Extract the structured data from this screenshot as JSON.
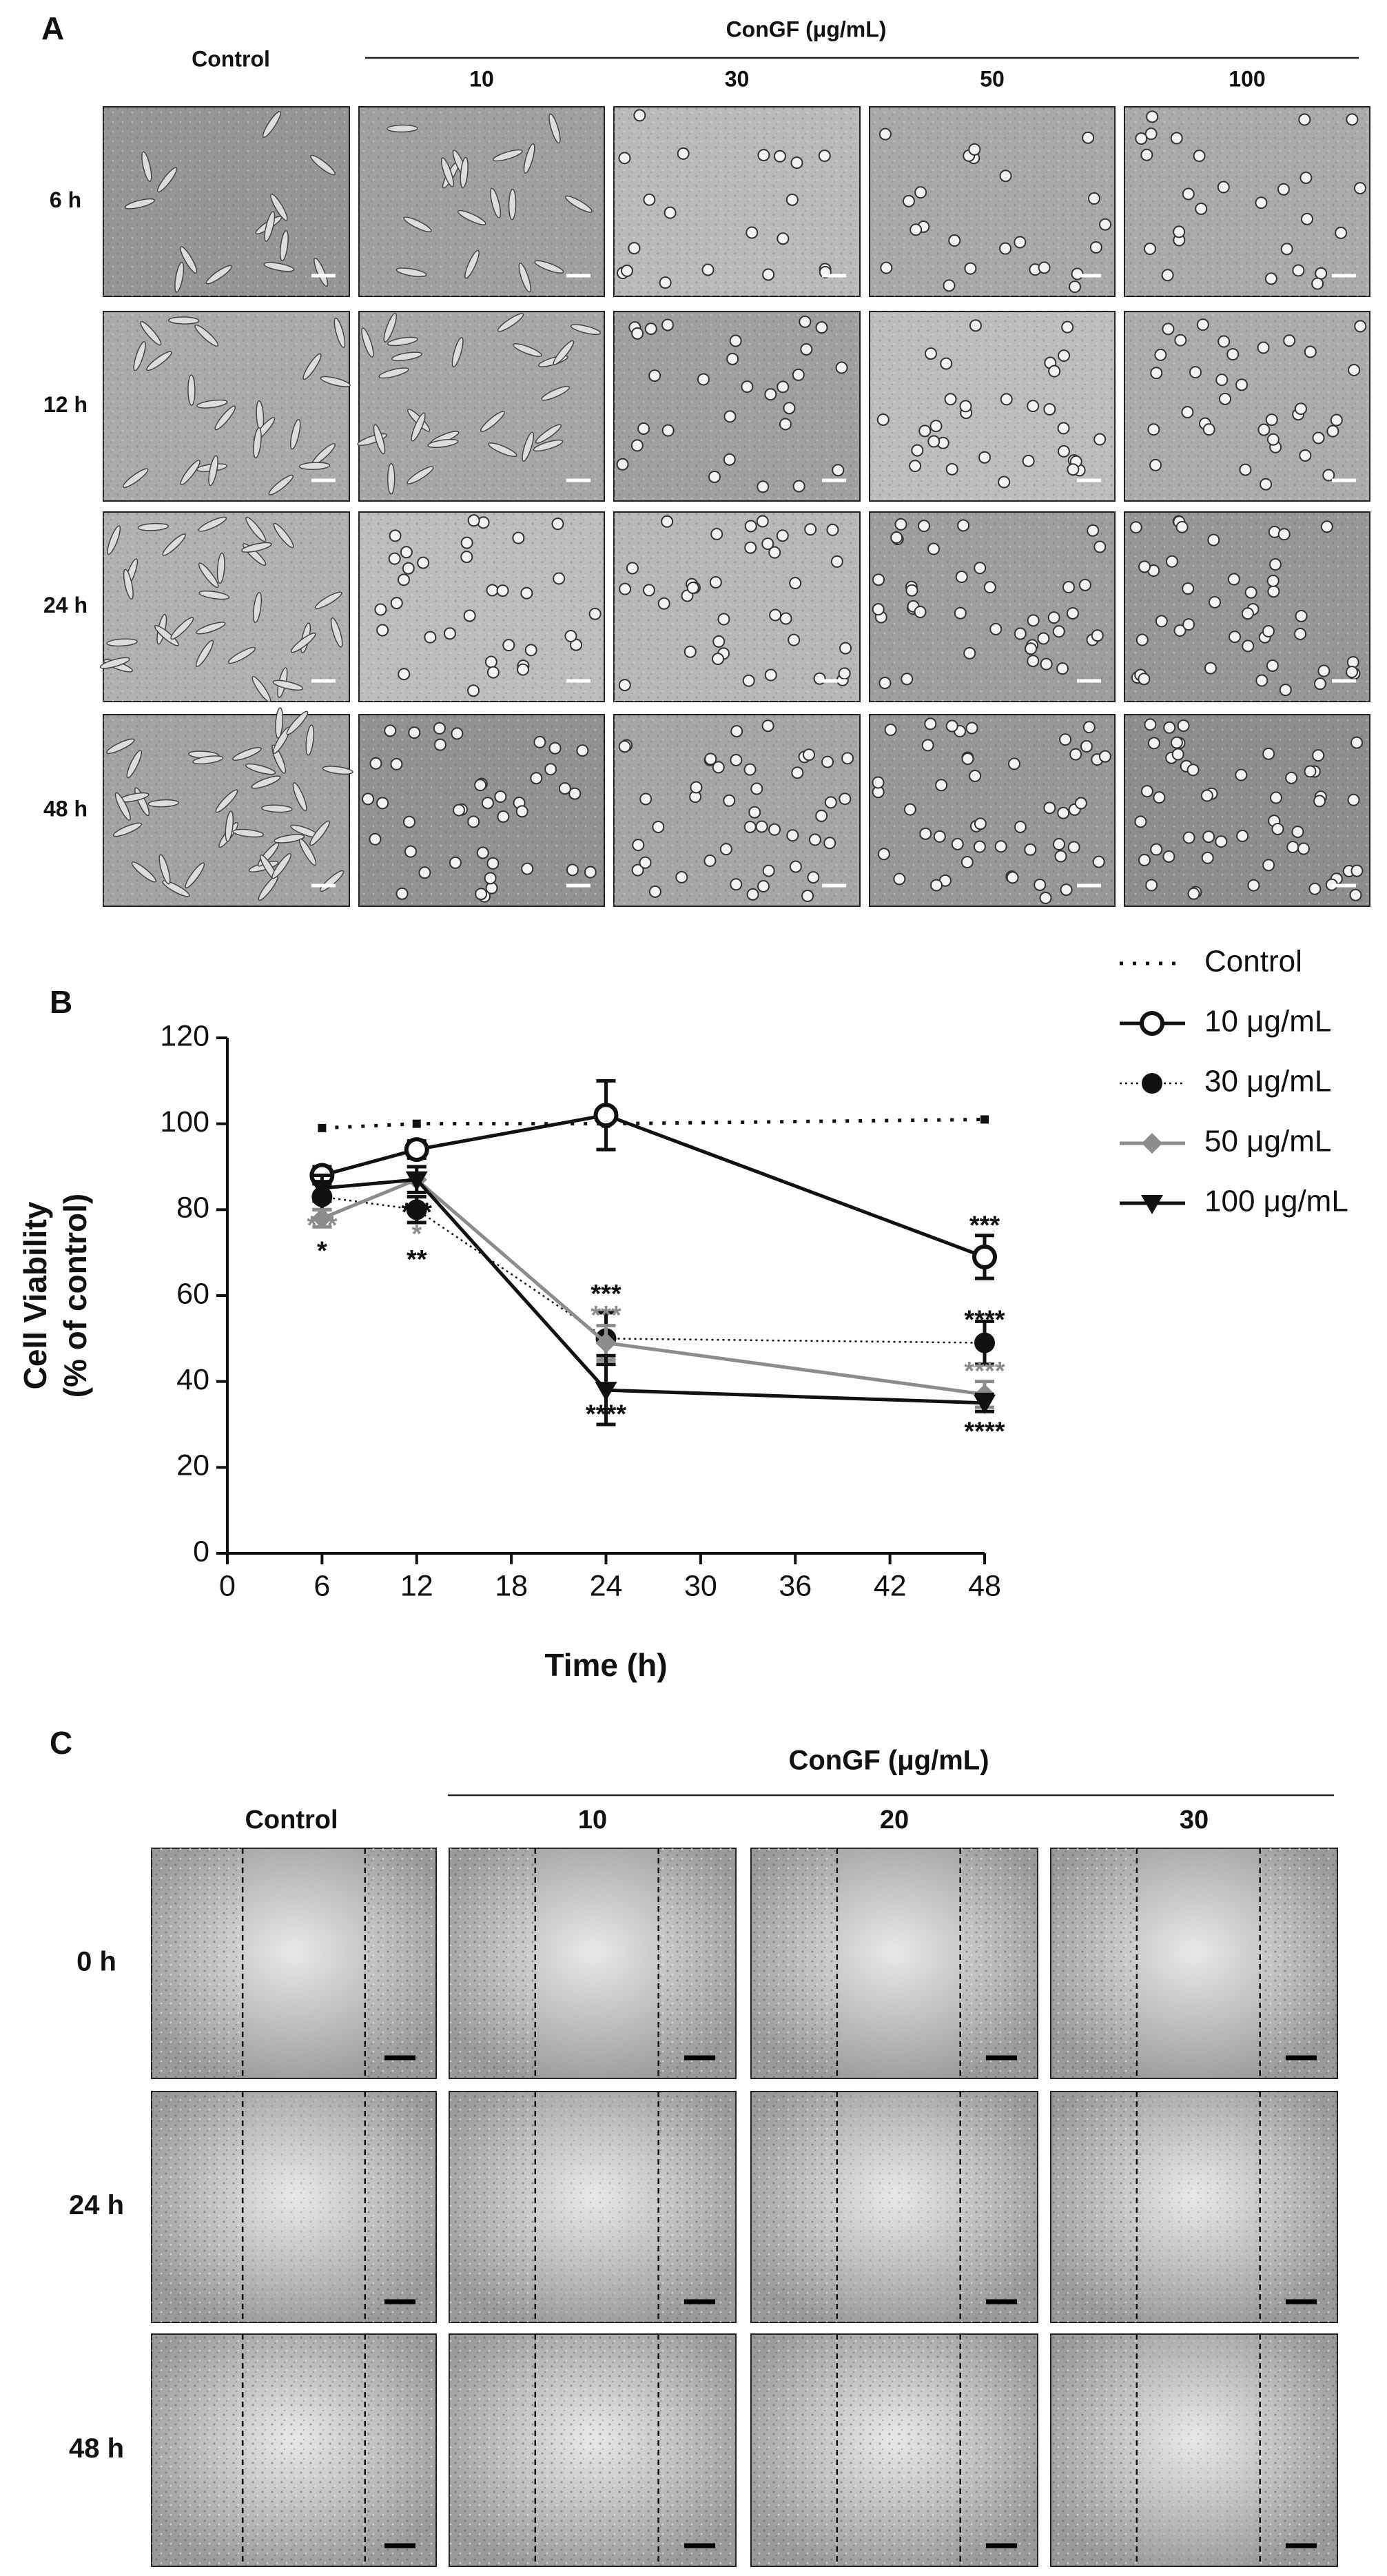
{
  "panel_a": {
    "label": "A",
    "control": "Control",
    "group": "ConGF (μg/mL)",
    "columns": [
      "10",
      "30",
      "50",
      "100"
    ],
    "rows": [
      "6 h",
      "12 h",
      "24 h",
      "48 h"
    ]
  },
  "panel_b": {
    "label": "B"
  },
  "chart_data": {
    "type": "line",
    "x_label": "Time (h)",
    "y_label": [
      "Cell Viability",
      "(% of control)"
    ],
    "x": [
      6,
      12,
      24,
      48
    ],
    "series": [
      {
        "name": "Control",
        "color": "#111111",
        "line_style": "dotted",
        "marker": "square",
        "values": [
          99,
          100,
          100,
          101
        ]
      },
      {
        "name": "10 μg/mL",
        "color": "#111111",
        "line_style": "solid",
        "marker": "open-circle",
        "values": [
          88,
          94,
          102,
          69
        ],
        "errors": [
          2,
          2,
          8,
          5
        ]
      },
      {
        "name": "30 μg/mL",
        "color": "#111111",
        "line_style": "fine-dotted",
        "marker": "circle",
        "values": [
          83,
          80,
          50,
          49
        ],
        "errors": [
          3,
          3,
          6,
          5
        ]
      },
      {
        "name": "50 μg/mL",
        "color": "#8c8c8c",
        "line_style": "solid",
        "marker": "diamond",
        "values": [
          78,
          87,
          49,
          37
        ],
        "errors": [
          2,
          3,
          4,
          3
        ]
      },
      {
        "name": "100 μg/mL",
        "color": "#111111",
        "line_style": "solid",
        "marker": "triangle-down",
        "values": [
          85,
          87,
          38,
          35
        ],
        "errors": [
          3,
          3,
          8,
          2
        ]
      }
    ],
    "annotations": [
      {
        "text": "***",
        "x": 6,
        "y": 76,
        "color": "#8c8c8c"
      },
      {
        "text": "*",
        "x": 6,
        "y": 70,
        "color": "#111111"
      },
      {
        "text": "***",
        "x": 12,
        "y": 79,
        "color": "#111111"
      },
      {
        "text": "*",
        "x": 12,
        "y": 74,
        "color": "#8c8c8c"
      },
      {
        "text": "**",
        "x": 12,
        "y": 68,
        "color": "#111111"
      },
      {
        "text": "***",
        "x": 24,
        "y": 60,
        "color": "#111111"
      },
      {
        "text": "***",
        "x": 24,
        "y": 55,
        "color": "#8c8c8c"
      },
      {
        "text": "****",
        "x": 24,
        "y": 32,
        "color": "#111111"
      },
      {
        "text": "***",
        "x": 48,
        "y": 76,
        "color": "#111111"
      },
      {
        "text": "****",
        "x": 48,
        "y": 54,
        "color": "#111111"
      },
      {
        "text": "****",
        "x": 48,
        "y": 42,
        "color": "#8c8c8c"
      },
      {
        "text": "****",
        "x": 48,
        "y": 28,
        "color": "#111111"
      }
    ],
    "xlim": [
      0,
      48
    ],
    "xticks": [
      0,
      6,
      12,
      18,
      24,
      30,
      36,
      42,
      48
    ],
    "ylim": [
      0,
      120
    ],
    "yticks": [
      0,
      20,
      40,
      60,
      80,
      100,
      120
    ],
    "legend": "right-top-outside"
  },
  "panel_c": {
    "label": "C",
    "control": "Control",
    "group": "ConGF (μg/mL)",
    "columns": [
      "10",
      "20",
      "30"
    ],
    "rows": [
      "0 h",
      "24 h",
      "48 h"
    ]
  }
}
